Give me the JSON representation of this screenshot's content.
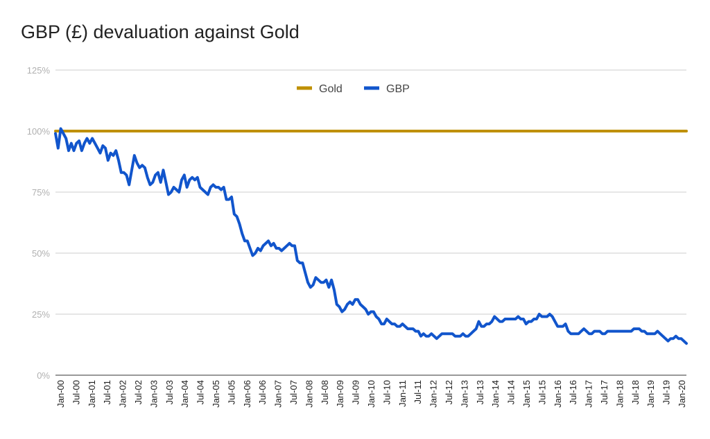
{
  "chart_data": {
    "type": "line",
    "title": "GBP (£) devaluation against Gold",
    "xlabel": "",
    "ylabel": "",
    "ylim": [
      0,
      125
    ],
    "y_ticks": [
      "0%",
      "25%",
      "50%",
      "75%",
      "100%",
      "125%"
    ],
    "x_tick_labels": [
      "Jan-00",
      "Jul-00",
      "Jan-01",
      "Jul-01",
      "Jan-02",
      "Jul-02",
      "Jan-03",
      "Jul-03",
      "Jan-04",
      "Jul-04",
      "Jan-05",
      "Jul-05",
      "Jan-06",
      "Jul-06",
      "Jan-07",
      "Jul-07",
      "Jan-08",
      "Jul-08",
      "Jan-09",
      "Jul-09",
      "Jan-10",
      "Jul-10",
      "Jan-11",
      "Jul-11",
      "Jan-12",
      "Jul-12",
      "Jan-13",
      "Jul-13",
      "Jan-14",
      "Jul-14",
      "Jan-15",
      "Jul-15",
      "Jan-16",
      "Jul-16",
      "Jan-17",
      "Jul-17",
      "Jan-18",
      "Jul-18",
      "Jan-19",
      "Jul-19",
      "Jan-20"
    ],
    "grid": true,
    "legend_position": "top-center",
    "series": [
      {
        "name": "Gold",
        "color": "#bf9000",
        "values": [
          100,
          100
        ]
      },
      {
        "name": "GBP",
        "color": "#1155cc",
        "values": [
          99,
          93,
          101,
          99,
          97,
          92,
          95,
          92,
          95,
          96,
          92,
          95,
          97,
          95,
          97,
          95,
          93,
          91,
          94,
          93,
          88,
          91,
          90,
          92,
          88,
          83,
          83,
          82,
          78,
          84,
          90,
          87,
          85,
          86,
          85,
          81,
          78,
          79,
          82,
          83,
          79,
          84,
          79,
          74,
          75,
          77,
          76,
          75,
          80,
          82,
          77,
          80,
          81,
          80,
          81,
          77,
          76,
          75,
          74,
          77,
          78,
          77,
          77,
          76,
          77,
          72,
          72,
          73,
          66,
          65,
          62,
          58,
          55,
          55,
          52,
          49,
          50,
          52,
          51,
          53,
          54,
          55,
          53,
          54,
          52,
          52,
          51,
          52,
          53,
          54,
          53,
          53,
          47,
          46,
          46,
          42,
          38,
          36,
          37,
          40,
          39,
          38,
          38,
          39,
          36,
          39,
          35,
          29,
          28,
          26,
          27,
          29,
          30,
          29,
          31,
          31,
          29,
          28,
          27,
          25,
          26,
          26,
          24,
          23,
          21,
          21,
          23,
          22,
          21,
          21,
          20,
          20,
          21,
          20,
          19,
          19,
          19,
          18,
          18,
          16,
          17,
          16,
          16,
          17,
          16,
          15,
          16,
          17,
          17,
          17,
          17,
          17,
          16,
          16,
          16,
          17,
          16,
          16,
          17,
          18,
          19,
          22,
          20,
          20,
          21,
          21,
          22,
          24,
          23,
          22,
          22,
          23,
          23,
          23,
          23,
          23,
          24,
          23,
          23,
          21,
          22,
          22,
          23,
          23,
          25,
          24,
          24,
          24,
          25,
          24,
          22,
          20,
          20,
          20,
          21,
          18,
          17,
          17,
          17,
          17,
          18,
          19,
          18,
          17,
          17,
          18,
          18,
          18,
          17,
          17,
          18,
          18,
          18,
          18,
          18,
          18,
          18,
          18,
          18,
          18,
          19,
          19,
          19,
          18,
          18,
          17,
          17,
          17,
          17,
          18,
          17,
          16,
          15,
          14,
          15,
          15,
          16,
          15,
          15,
          14,
          13
        ]
      }
    ]
  }
}
